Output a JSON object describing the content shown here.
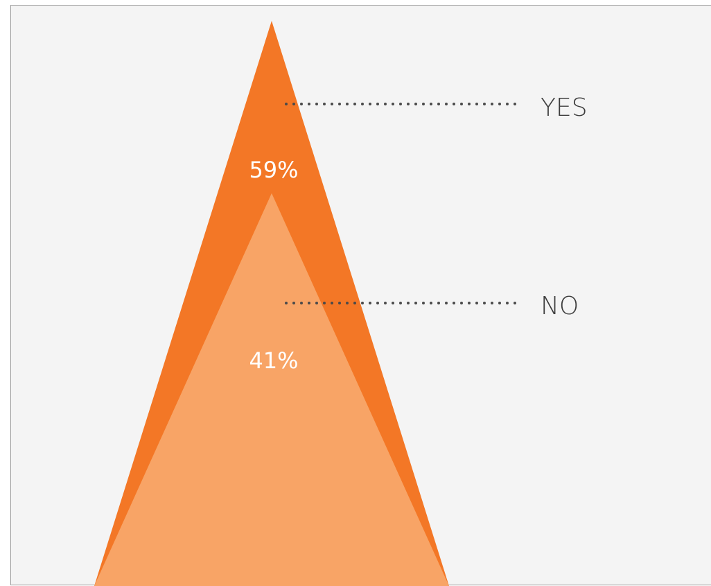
{
  "chart_data": {
    "type": "area",
    "categories": [
      "YES",
      "NO"
    ],
    "values": [
      59,
      41
    ],
    "value_labels": [
      "59%",
      "41%"
    ],
    "colors": [
      "#f37726",
      "#f8a466"
    ],
    "background": "#f4f4f4",
    "frame_color": "#9a9a9a",
    "leader_color": "#4a4a4a",
    "label_color": "#ffffff",
    "legend": "right"
  }
}
